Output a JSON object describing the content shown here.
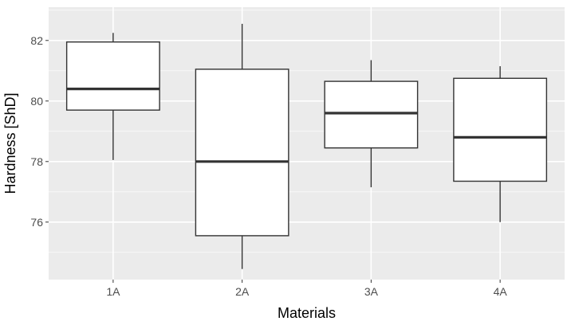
{
  "chart_data": {
    "type": "box",
    "xlabel": "Materials",
    "ylabel": "Hardness [ShD]",
    "categories": [
      "1A",
      "2A",
      "3A",
      "4A"
    ],
    "ylim": [
      74.1,
      83.1
    ],
    "yticks": [
      76,
      78,
      80,
      82
    ],
    "grid": "on",
    "legend": "none",
    "boxes": [
      {
        "category": "1A",
        "min": 78.05,
        "q1": 79.7,
        "median": 80.4,
        "q3": 81.95,
        "max": 82.25
      },
      {
        "category": "2A",
        "min": 74.45,
        "q1": 75.55,
        "median": 78.0,
        "q3": 81.05,
        "max": 82.55
      },
      {
        "category": "3A",
        "min": 77.15,
        "q1": 78.45,
        "median": 79.6,
        "q3": 80.65,
        "max": 81.35
      },
      {
        "category": "4A",
        "min": 76.0,
        "q1": 77.35,
        "median": 78.8,
        "q3": 80.75,
        "max": 81.15
      }
    ],
    "colors": {
      "panel_background": "#ebebeb",
      "grid_major": "#ffffff",
      "box_fill": "#ffffff",
      "box_stroke": "#333333",
      "tick_text": "#4d4d4d",
      "title_text": "#000000"
    }
  }
}
